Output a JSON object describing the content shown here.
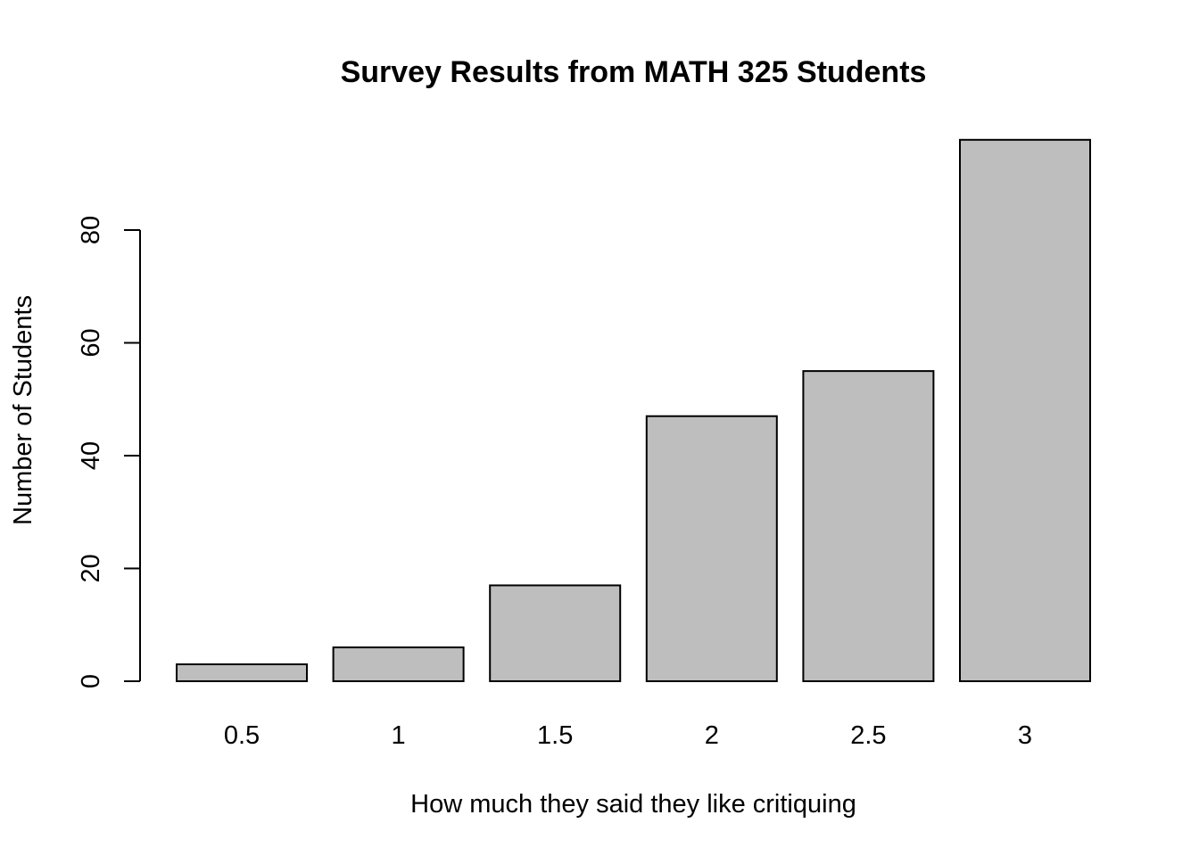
{
  "chart_data": {
    "type": "bar",
    "title": "Survey Results from MATH 325 Students",
    "xlabel": "How much they said they like critiquing",
    "ylabel": "Number of Students",
    "categories": [
      "0.5",
      "1",
      "1.5",
      "2",
      "2.5",
      "3"
    ],
    "values": [
      3,
      6,
      17,
      47,
      55,
      96
    ],
    "ylim": [
      0,
      96
    ],
    "yticks": [
      "0",
      "20",
      "40",
      "60",
      "80"
    ],
    "grid": false,
    "legend": "none",
    "bar_color": "#bebebe",
    "border_color": "#000000"
  }
}
